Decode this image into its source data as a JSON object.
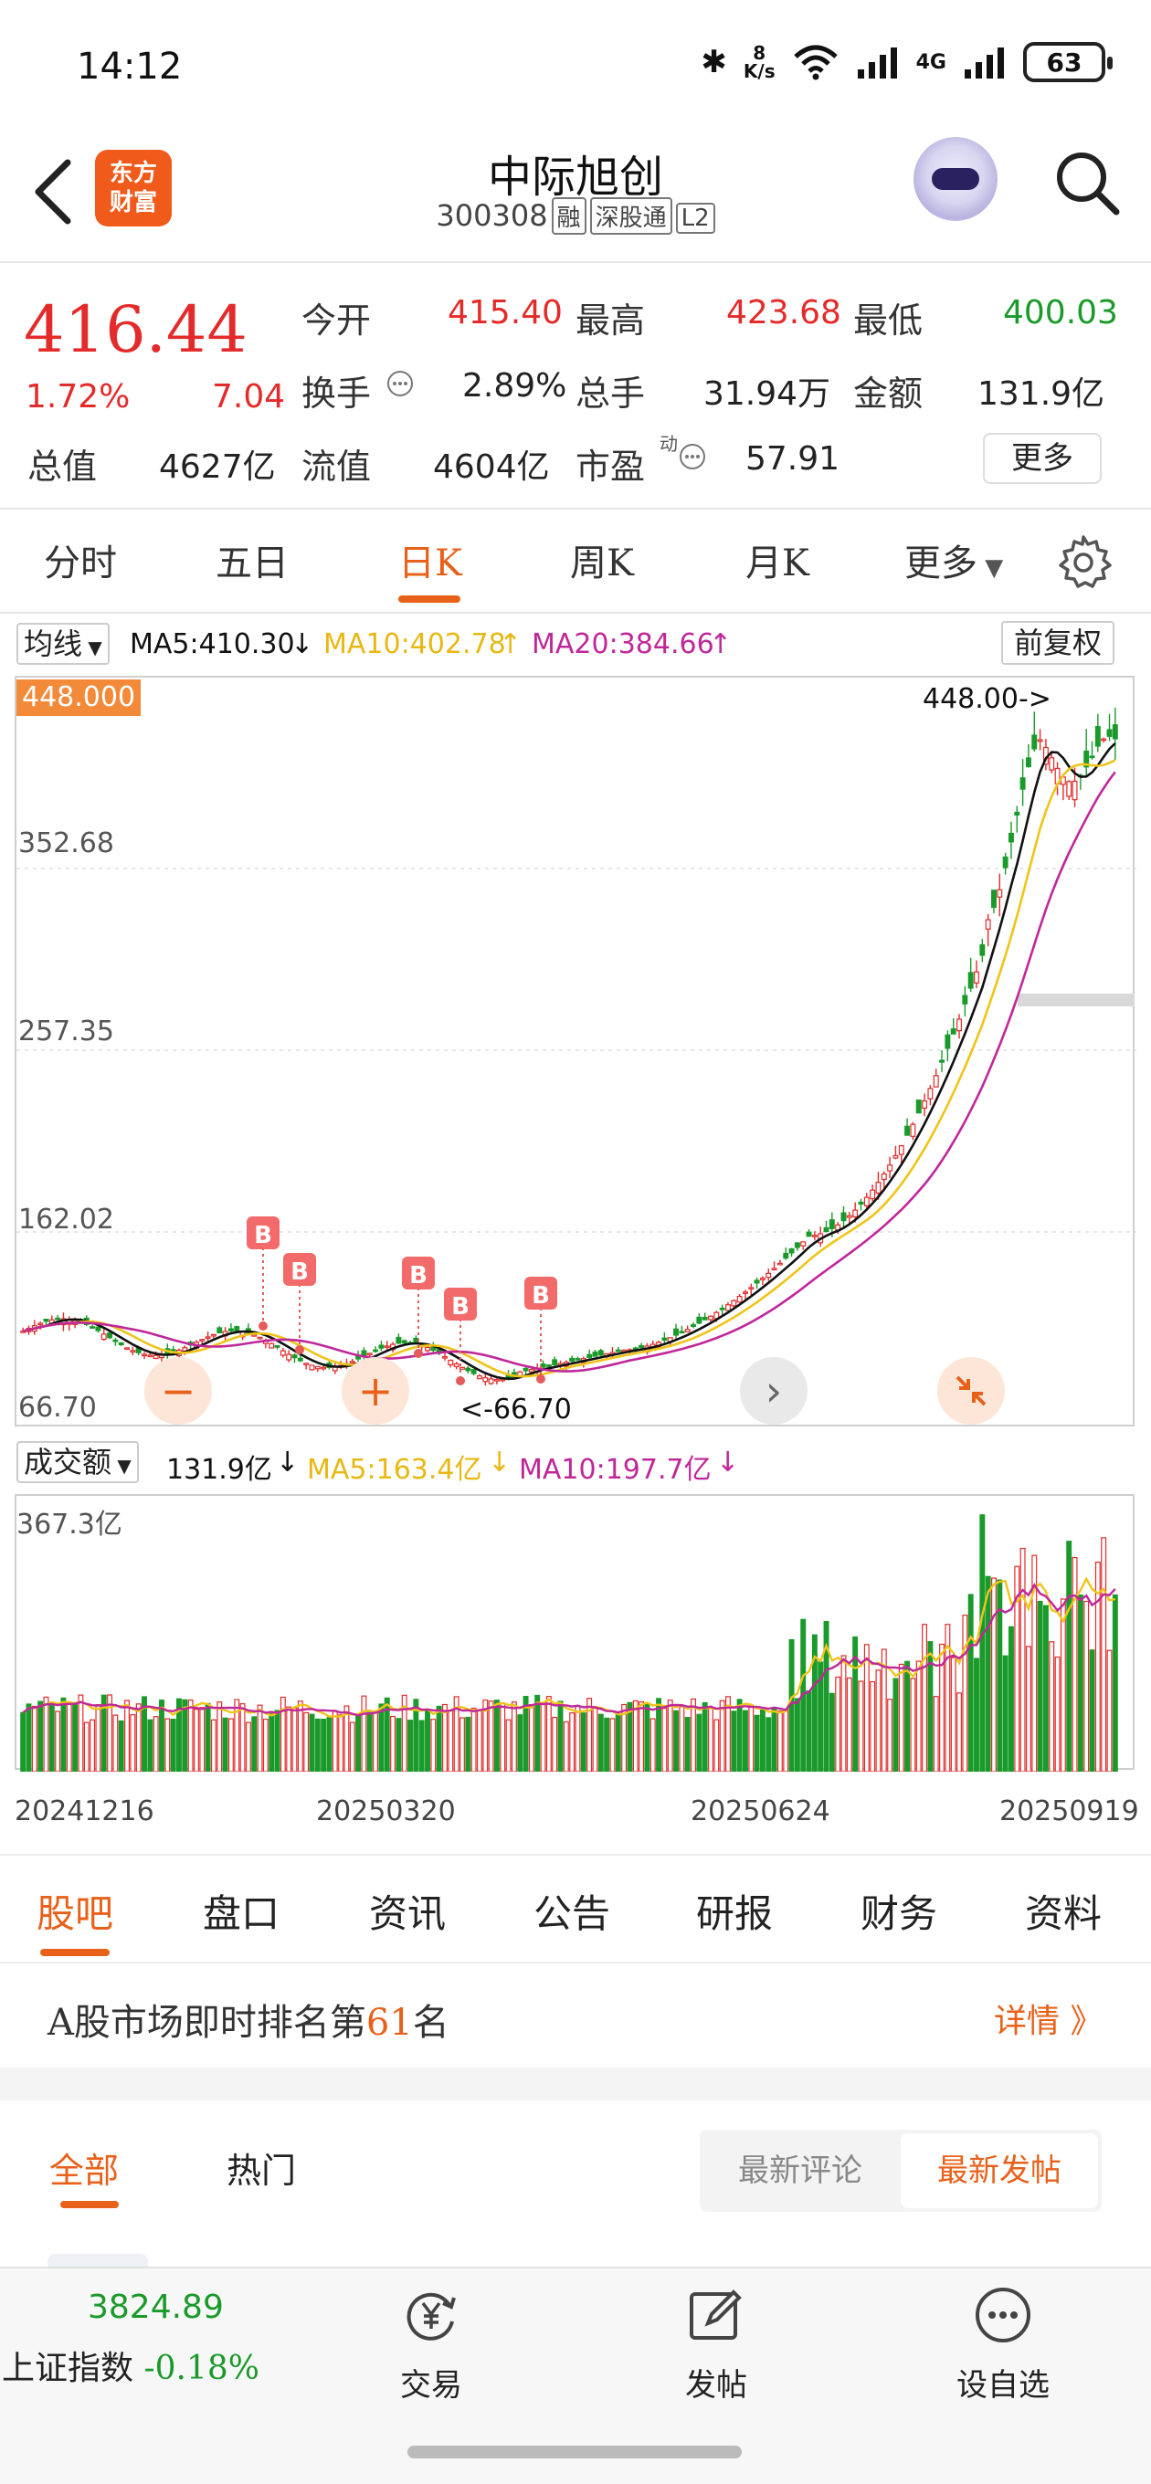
{
  "status_bar": {
    "time": "14:12",
    "net_speed_value": "8",
    "net_speed_unit": "K/s",
    "network": "4G",
    "battery": "63"
  },
  "header": {
    "logo_line1": "东方",
    "logo_line2": "财富",
    "stock_name": "中际旭创",
    "stock_code": "300308",
    "tags": [
      "融",
      "深股通",
      "L2"
    ]
  },
  "quote": {
    "price": "416.44",
    "change_pct": "1.72%",
    "change": "7.04",
    "rows": [
      [
        {
          "label": "今开",
          "value": "415.40",
          "color": "red"
        },
        {
          "label": "最高",
          "value": "423.68",
          "color": "red"
        },
        {
          "label": "最低",
          "value": "400.03",
          "color": "green"
        }
      ],
      [
        {
          "label": "换手",
          "value": "2.89%",
          "color": "dark"
        },
        {
          "label": "总手",
          "value": "31.94万",
          "color": "dark"
        },
        {
          "label": "金额",
          "value": "131.9亿",
          "color": "dark"
        }
      ],
      [
        {
          "label": "总值",
          "value": "4627亿",
          "color": "dark"
        },
        {
          "label": "流值",
          "value": "4604亿",
          "color": "dark"
        },
        {
          "label": "市盈",
          "value": "57.91",
          "color": "dark"
        }
      ]
    ],
    "pe_superscript": "动",
    "more_label": "更多"
  },
  "period_tabs": {
    "items": [
      "分时",
      "五日",
      "日K",
      "周K",
      "月K",
      "更多"
    ],
    "active": "日K"
  },
  "ma_bar": {
    "selector": "均线",
    "ma5": "MA5:410.30",
    "ma10": "MA10:402.78",
    "ma20": "MA20:384.66",
    "adjust": "前复权",
    "colors": {
      "ma5": "#111111",
      "ma10": "#f0c419",
      "ma20": "#c0279a"
    }
  },
  "controls": {
    "zoom_out": "−",
    "zoom_in": "+",
    "next": "›"
  },
  "volume_bar": {
    "selector": "成交额",
    "value": "131.9亿",
    "ma5": "MA5:163.4亿",
    "ma10": "MA10:197.7亿"
  },
  "chart_data": {
    "type": "candlestick",
    "y_ticks": [
      "448.000",
      "352.68",
      "257.35",
      "162.02",
      "66.70"
    ],
    "ylim": [
      66.7,
      448.0
    ],
    "max_annotation": "448.00->",
    "min_annotation": "<-66.70",
    "buy_marker": "B",
    "buy_marker_count": 5,
    "x_ticks": [
      "20241216",
      "20250320",
      "20250624",
      "20250919"
    ],
    "volume_max_label": "367.3亿",
    "up_color": "#e32b2b",
    "down_color": "#1a9a2a"
  },
  "info_tabs": {
    "items": [
      "股吧",
      "盘口",
      "资讯",
      "公告",
      "研报",
      "财务",
      "资料"
    ],
    "active": "股吧"
  },
  "rank": {
    "prefix": "A股市场即时排名第",
    "number": "61",
    "suffix": "名",
    "detail": "详情 》"
  },
  "forum": {
    "tabs": [
      "全部",
      "热门"
    ],
    "active": "全部",
    "sort_options": [
      "最新评论",
      "最新发帖"
    ],
    "sort_active": "最新发帖"
  },
  "bottom_nav": {
    "index_value": "3824.89",
    "index_name": "上证指数",
    "index_change": "-0.18%",
    "items": [
      {
        "label": "交易",
        "icon": "yen-cycle-icon"
      },
      {
        "label": "发帖",
        "icon": "edit-icon"
      },
      {
        "label": "设自选",
        "icon": "more-dots-icon"
      }
    ]
  }
}
